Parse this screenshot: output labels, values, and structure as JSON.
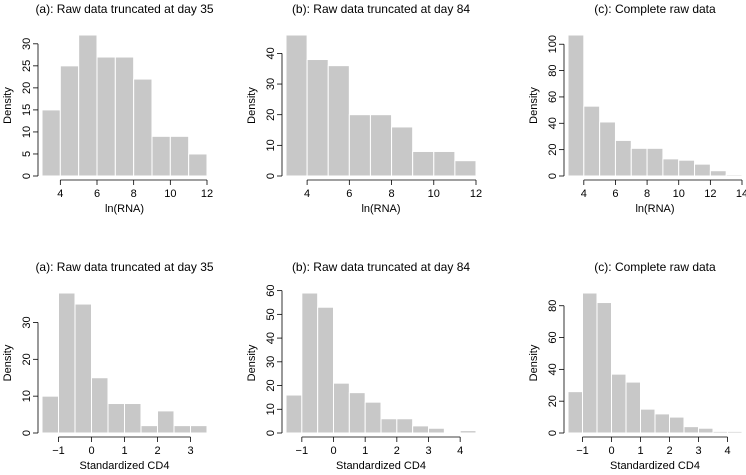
{
  "colors": {
    "bar": "#c8c8c8",
    "axis": "#000000",
    "bar_border": "#ffffff"
  },
  "chart_data": [
    {
      "type": "bar",
      "title": "(a): Raw data truncated at day 35",
      "xlabel": "ln(RNA)",
      "ylabel": "Density",
      "bin_edges": [
        3,
        4,
        5,
        6,
        7,
        8,
        9,
        10,
        11,
        12
      ],
      "values": [
        15,
        25,
        32,
        27,
        27,
        22,
        9,
        9,
        5
      ],
      "xlim": [
        3,
        12
      ],
      "ylim": [
        0,
        32
      ],
      "xticks": [
        4,
        6,
        8,
        10,
        12
      ],
      "yticks": [
        0,
        5,
        10,
        15,
        20,
        25,
        30
      ]
    },
    {
      "type": "bar",
      "title": "(b): Raw data truncated at day 84",
      "xlabel": "ln(RNA)",
      "ylabel": "Density",
      "bin_edges": [
        3,
        4,
        5,
        6,
        7,
        8,
        9,
        10,
        11,
        12
      ],
      "values": [
        46,
        38,
        36,
        20,
        20,
        16,
        8,
        8,
        5
      ],
      "xlim": [
        3,
        12
      ],
      "ylim": [
        0,
        46
      ],
      "xticks": [
        4,
        6,
        8,
        10,
        12
      ],
      "yticks": [
        0,
        10,
        20,
        30,
        40
      ]
    },
    {
      "type": "bar",
      "title": "(c): Complete raw data",
      "xlabel": "ln(RNA)",
      "ylabel": "Density",
      "bin_edges": [
        3,
        4,
        5,
        6,
        7,
        8,
        9,
        10,
        11,
        12,
        13,
        14
      ],
      "values": [
        107,
        53,
        41,
        27,
        21,
        21,
        13,
        12,
        9,
        4,
        1
      ],
      "xlim": [
        3,
        14
      ],
      "ylim": [
        0,
        107
      ],
      "xticks": [
        4,
        6,
        8,
        10,
        12,
        14
      ],
      "yticks": [
        0,
        20,
        40,
        60,
        80,
        100
      ]
    },
    {
      "type": "bar",
      "title": "(a): Raw data truncated at day 35",
      "xlabel": "Standardized CD4",
      "ylabel": "Density",
      "bin_edges": [
        -1.5,
        -1,
        -0.5,
        0,
        0.5,
        1,
        1.5,
        2,
        2.5,
        3,
        3.5
      ],
      "values": [
        10,
        38,
        35,
        15,
        8,
        8,
        2,
        6,
        2,
        2
      ],
      "xlim": [
        -1.5,
        3.5
      ],
      "ylim": [
        0,
        38
      ],
      "xticks": [
        -1,
        0,
        1,
        2,
        3
      ],
      "yticks": [
        0,
        10,
        20,
        30
      ]
    },
    {
      "type": "bar",
      "title": "(b): Raw data truncated at day 84",
      "xlabel": "Standardized CD4",
      "ylabel": "Density",
      "bin_edges": [
        -1.5,
        -1,
        -0.5,
        0,
        0.5,
        1,
        1.5,
        2,
        2.5,
        3,
        3.5,
        4,
        4.5
      ],
      "values": [
        16,
        59,
        53,
        21,
        17,
        13,
        6,
        6,
        3,
        2,
        0,
        1
      ],
      "xlim": [
        -1.5,
        4.5
      ],
      "ylim": [
        0,
        59
      ],
      "xticks": [
        -1,
        0,
        1,
        2,
        3,
        4
      ],
      "yticks": [
        0,
        10,
        20,
        30,
        40,
        50,
        60
      ]
    },
    {
      "type": "bar",
      "title": "(c): Complete raw data",
      "xlabel": "Standardized CD4",
      "ylabel": "Density",
      "bin_edges": [
        -1.5,
        -1,
        -0.5,
        0,
        0.5,
        1,
        1.5,
        2,
        2.5,
        3,
        3.5,
        4,
        4.5
      ],
      "values": [
        26,
        88,
        82,
        37,
        32,
        15,
        12,
        10,
        4,
        3,
        1,
        1
      ],
      "xlim": [
        -1.5,
        4.5
      ],
      "ylim": [
        0,
        88
      ],
      "xticks": [
        -1,
        0,
        1,
        2,
        3,
        4
      ],
      "yticks": [
        0,
        20,
        40,
        60,
        80
      ]
    }
  ]
}
